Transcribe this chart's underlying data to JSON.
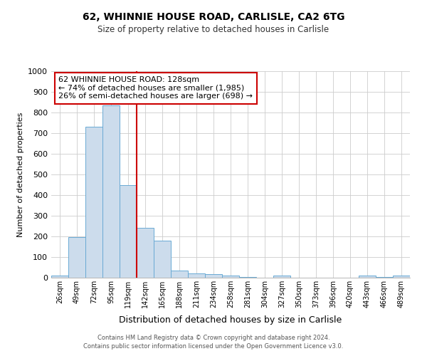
{
  "title_line1": "62, WHINNIE HOUSE ROAD, CARLISLE, CA2 6TG",
  "title_line2": "Size of property relative to detached houses in Carlisle",
  "xlabel": "Distribution of detached houses by size in Carlisle",
  "ylabel": "Number of detached properties",
  "categories": [
    "26sqm",
    "49sqm",
    "72sqm",
    "95sqm",
    "119sqm",
    "142sqm",
    "165sqm",
    "188sqm",
    "211sqm",
    "234sqm",
    "258sqm",
    "281sqm",
    "304sqm",
    "327sqm",
    "350sqm",
    "373sqm",
    "396sqm",
    "420sqm",
    "443sqm",
    "466sqm",
    "489sqm"
  ],
  "values": [
    12,
    195,
    730,
    835,
    448,
    242,
    178,
    33,
    22,
    17,
    11,
    5,
    0,
    9,
    0,
    0,
    0,
    0,
    10,
    5,
    9
  ],
  "bar_color": "#ccdcec",
  "bar_edge_color": "#6aaad4",
  "annotation_text_line1": "62 WHINNIE HOUSE ROAD: 128sqm",
  "annotation_text_line2": "← 74% of detached houses are smaller (1,985)",
  "annotation_text_line3": "26% of semi-detached houses are larger (698) →",
  "annotation_box_color": "#ffffff",
  "annotation_box_edge": "#cc0000",
  "vline_color": "#cc0000",
  "vline_x": 4.5,
  "ylim": [
    0,
    1000
  ],
  "yticks": [
    0,
    100,
    200,
    300,
    400,
    500,
    600,
    700,
    800,
    900,
    1000
  ],
  "grid_color": "#cccccc",
  "background_color": "#ffffff",
  "footnote_line1": "Contains HM Land Registry data © Crown copyright and database right 2024.",
  "footnote_line2": "Contains public sector information licensed under the Open Government Licence v3.0."
}
